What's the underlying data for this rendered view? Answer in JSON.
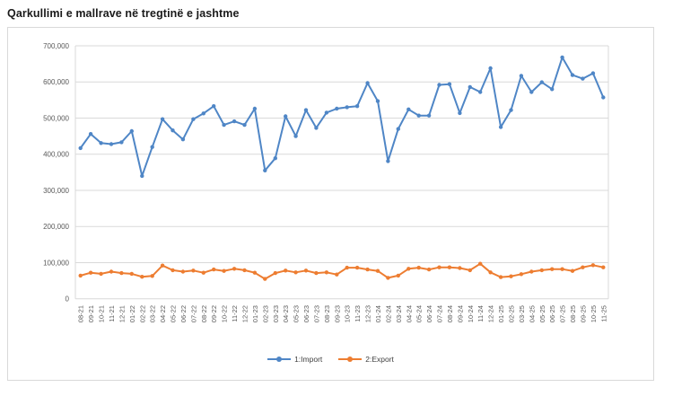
{
  "title": "Qarkullimi e mallrave në tregtinë e jashtme",
  "chart_data": {
    "type": "line",
    "title": "Qarkullimi e mallrave në tregtinë e jashtme",
    "xlabel": "",
    "ylabel": "",
    "ylim": [
      0,
      700000
    ],
    "ytick_interval": 100000,
    "ytick_labels": [
      "0",
      "100,000",
      "200,000",
      "300,000",
      "400,000",
      "500,000",
      "600,000",
      "700,000"
    ],
    "grid": "horizontal",
    "legend_position": "bottom",
    "marker": "circle",
    "categories": [
      "08-21",
      "09-21",
      "10-21",
      "11-21",
      "12-21",
      "01-22",
      "02-22",
      "03-22",
      "04-22",
      "05-22",
      "06-22",
      "07-22",
      "08-22",
      "09-22",
      "10-22",
      "11-22",
      "12-22",
      "01-23",
      "02-23",
      "03-23",
      "04-23",
      "05-23",
      "06-23",
      "07-23",
      "08-23",
      "09-23",
      "10-23",
      "11-23",
      "12-23",
      "01-24",
      "02-24",
      "03-24",
      "04-24",
      "05-24",
      "06-24",
      "07-24",
      "08-24",
      "09-24",
      "10-24",
      "11-24",
      "12-24",
      "01-25",
      "02-25",
      "03-25",
      "04-25",
      "05-25",
      "06-25",
      "07-25",
      "08-25",
      "09-25",
      "10-25",
      "11-25"
    ],
    "series": [
      {
        "name": "1:Import",
        "color": "#4f86c6",
        "values": [
          417000,
          456000,
          431000,
          428000,
          433000,
          464000,
          340000,
          420000,
          497000,
          466000,
          441000,
          497000,
          513000,
          533000,
          481000,
          491000,
          481000,
          526000,
          355000,
          389000,
          505000,
          450000,
          522000,
          473000,
          515000,
          526000,
          530000,
          533000,
          597000,
          547000,
          381000,
          470000,
          524000,
          507000,
          507000,
          592000,
          594000,
          514000,
          586000,
          572000,
          638000,
          475000,
          522000,
          617000,
          572000,
          599000,
          580000,
          668000,
          619000,
          609000,
          624000,
          557000
        ]
      },
      {
        "name": "2:Export",
        "color": "#ed7d31",
        "values": [
          64000,
          72000,
          69000,
          75000,
          71000,
          69000,
          61000,
          63000,
          92000,
          79000,
          75000,
          78000,
          72000,
          81000,
          77000,
          83000,
          79000,
          72000,
          55000,
          71000,
          78000,
          73000,
          78000,
          71000,
          73000,
          67000,
          86000,
          86000,
          81000,
          77000,
          58000,
          64000,
          83000,
          86000,
          81000,
          87000,
          87000,
          85000,
          79000,
          97000,
          73000,
          60000,
          62000,
          68000,
          75000,
          79000,
          82000,
          82000,
          77000,
          87000,
          93000,
          87000
        ]
      }
    ],
    "colors": {
      "gridline": "#d9d9d9",
      "axis_label": "#595959",
      "panel_border": "#d9d9d9",
      "title_text": "#1a1a1a"
    }
  }
}
